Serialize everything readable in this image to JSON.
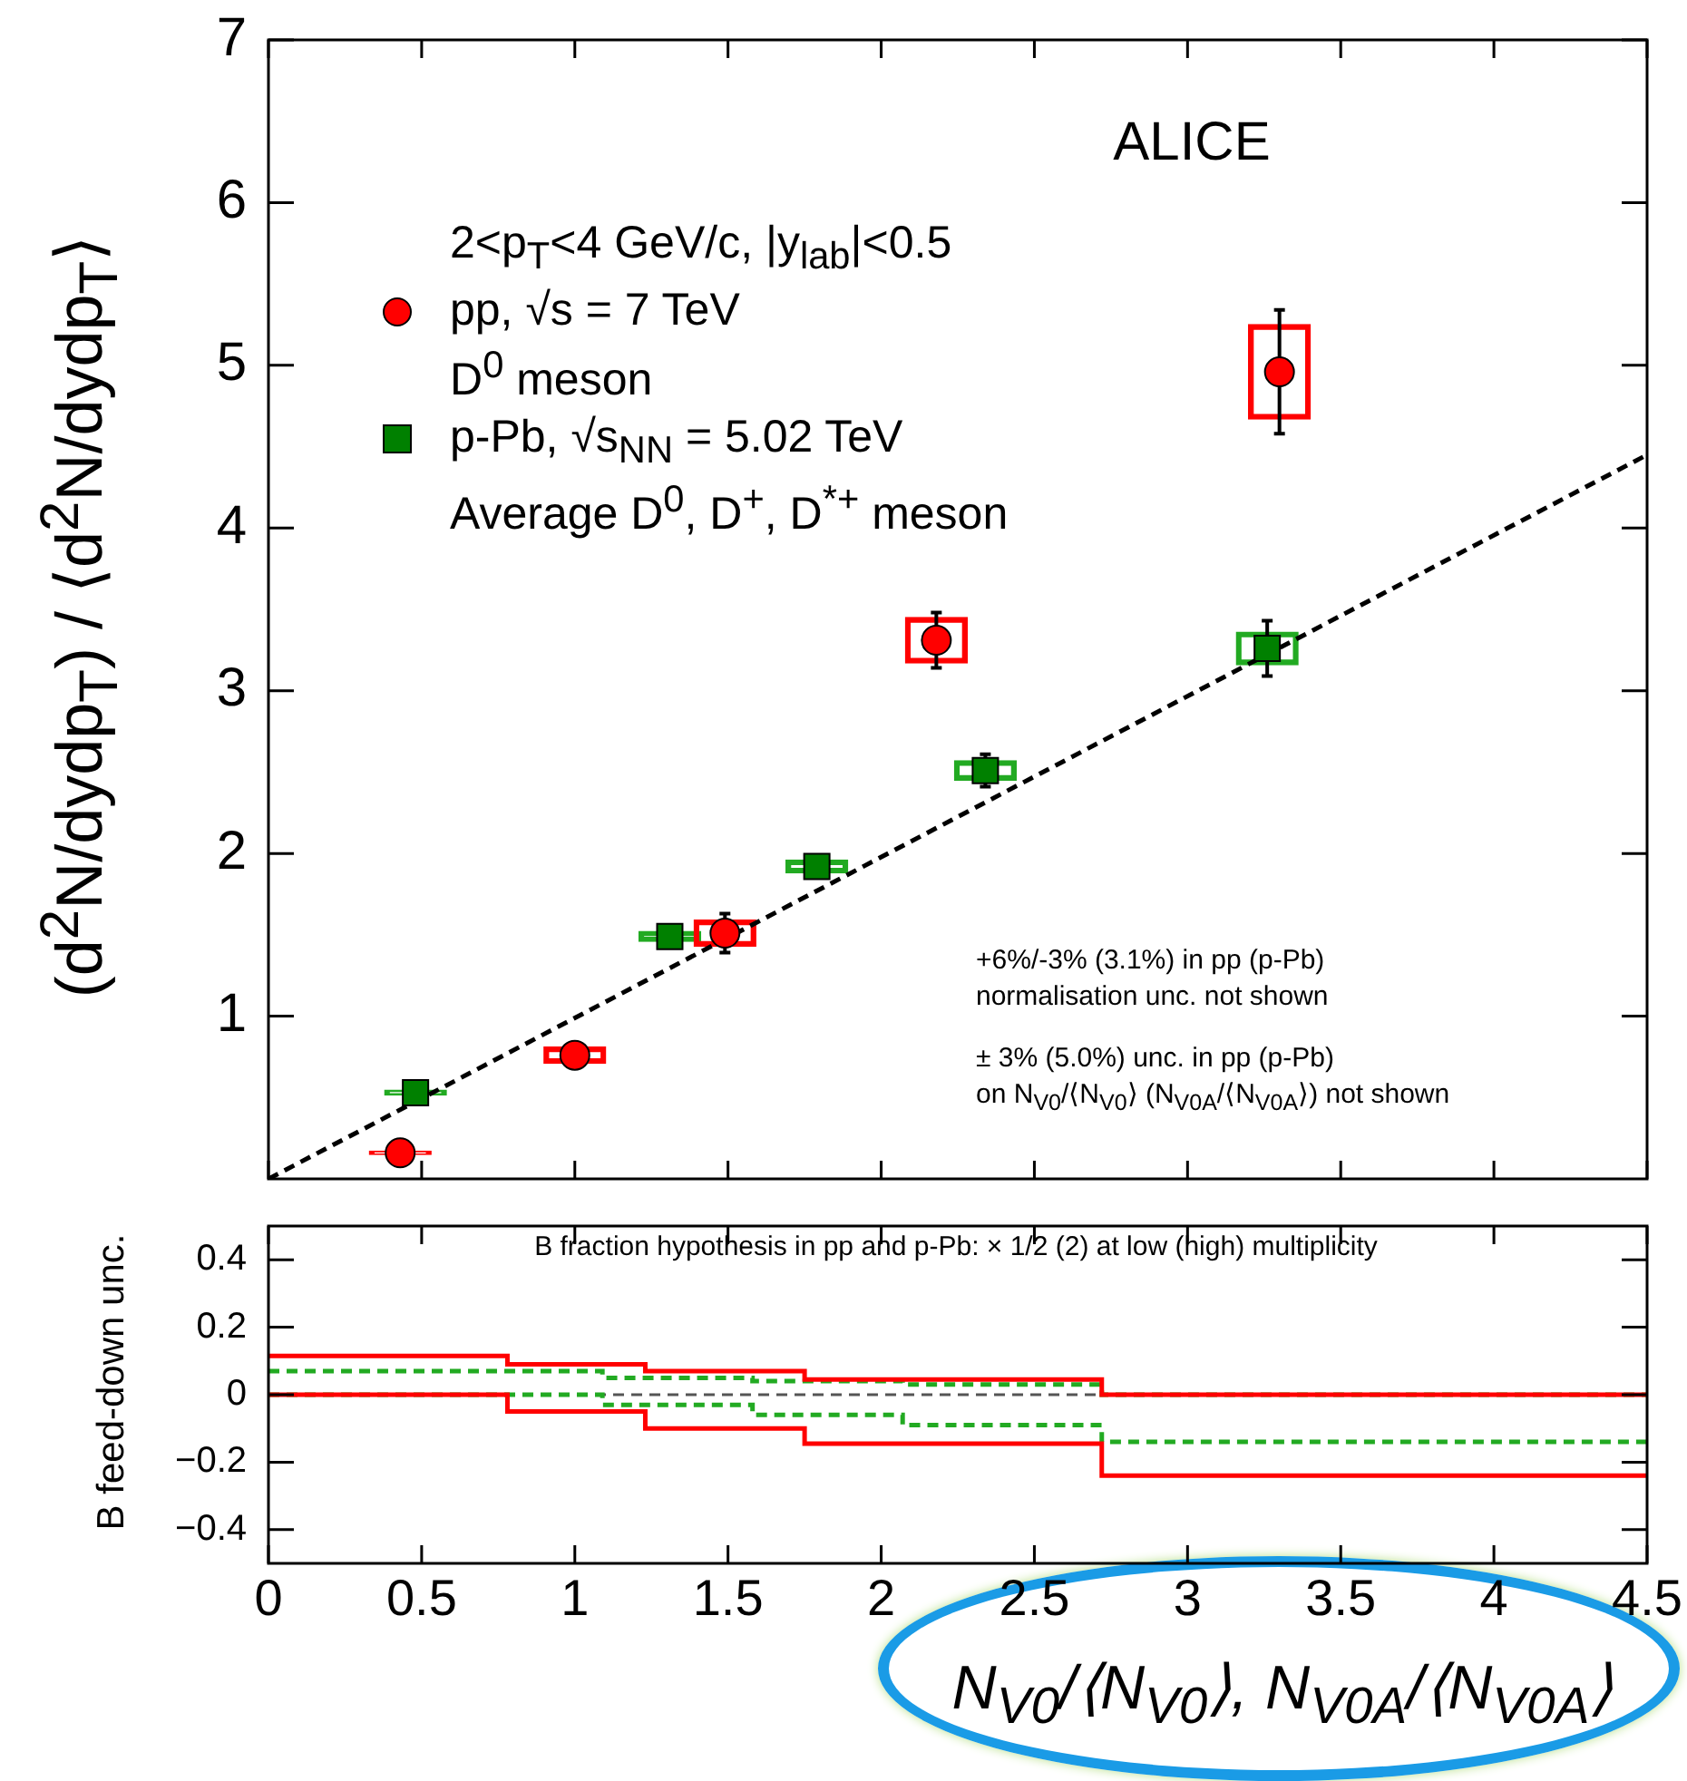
{
  "chart_data": [
    {
      "type": "scatter",
      "title": "ALICE",
      "ylabel": "(d$^{2}$N/dydp$_{T}$) / ⟨d$^{2}$N/dydp$_{T}$⟩",
      "legend": "top left",
      "legend_title": "2<p$_{T}$<4 GeV/c, |y$_{lab}$|<0.5",
      "xlim": [
        0,
        4.5
      ],
      "xticks": [
        0,
        0.5,
        1,
        1.5,
        2,
        2.5,
        3,
        3.5,
        4,
        4.5
      ],
      "ylim": [
        0,
        7
      ],
      "yticks": [
        1,
        2,
        3,
        4,
        5,
        6,
        7
      ],
      "tick_labels": "y",
      "series": [
        {
          "type": "bar",
          "color": "#ff0000",
          "x": [
            0.43,
            1.0,
            1.49,
            2.18,
            3.3
          ],
          "base": [
            0.15,
            0.71,
            1.43,
            3.17,
            4.67
          ],
          "values": [
            0.02,
            0.1,
            0.16,
            0.28,
            0.58
          ]
        },
        {
          "type": "bar",
          "color": "#22aa22",
          "x": [
            0.48,
            1.31,
            1.79,
            2.34,
            3.26
          ],
          "base": [
            0.515,
            1.46,
            1.88,
            2.45,
            3.16
          ],
          "values": [
            0.03,
            0.06,
            0.08,
            0.12,
            0.2
          ]
        },
        {
          "name": "pp, √s = 7 TeV\nD$^{0}$ meson",
          "color": "#ff0000",
          "marker": "circle",
          "x": [
            0.43,
            1.0,
            1.49,
            2.18,
            3.3
          ],
          "values": [
            0.16,
            0.76,
            1.51,
            3.31,
            4.96
          ],
          "errors": [
            null,
            0.07,
            0.12,
            0.17,
            0.38
          ]
        },
        {
          "name": "p-Pb, √s$_{NN}$ = 5.02 TeV\nAverage D$^{0}$, D$^{+}$, D$^{*+}$ meson",
          "color": "#008000",
          "marker": "square",
          "x": [
            0.48,
            1.31,
            1.79,
            2.34,
            3.26
          ],
          "values": [
            0.53,
            1.49,
            1.92,
            2.51,
            3.26
          ],
          "errors": [
            null,
            null,
            0.07,
            0.1,
            0.17
          ]
        },
        {
          "type": "line",
          "color": "#000000",
          "marker": "none",
          "line_style": "dashed",
          "x": [
            0,
            4.5
          ],
          "values": [
            0,
            4.45
          ]
        }
      ],
      "annotations": [
        "+6%/-3% (3.1%) in pp (p-Pb)\nnormalisation unc. not shown",
        "± 3% (5.0%) unc. in pp (p-Pb)\non N$_{V0}$/⟨N$_{V0}$⟩ (N$_{V0A}$/⟨N$_{V0A}$⟩) not shown"
      ]
    },
    {
      "type": "step",
      "xlabel": "N$_{V0}$/⟨N$_{V0}$⟩, N$_{V0A}$/⟨N$_{V0A}$⟩",
      "ylabel": "B feed-down unc.",
      "xlim": [
        0,
        4.5
      ],
      "xticks": [
        0,
        0.5,
        1,
        1.5,
        2,
        2.5,
        3,
        3.5,
        4,
        4.5
      ],
      "ylim": [
        -0.5,
        0.5
      ],
      "yticks": [
        -0.4,
        -0.2,
        0,
        0.2,
        0.4
      ],
      "series": [
        {
          "color": "#ff0000",
          "line_style": "solid",
          "x": [
            0,
            0.78,
            1.23,
            1.75,
            2.72,
            4.5
          ],
          "values": [
            0.115,
            0.09,
            0.07,
            0.045,
            0,
            0
          ]
        },
        {
          "color": "#ff0000",
          "line_style": "solid",
          "x": [
            0,
            0.78,
            1.23,
            1.75,
            2.72,
            4.5
          ],
          "values": [
            0,
            -0.05,
            -0.1,
            -0.145,
            -0.24,
            -0.24
          ]
        },
        {
          "color": "#22aa22",
          "line_style": "dashed",
          "x": [
            0,
            1.09,
            1.58,
            2.07,
            2.72,
            4.5
          ],
          "values": [
            0.07,
            0.05,
            0.04,
            0.03,
            0,
            0
          ]
        },
        {
          "color": "#22aa22",
          "line_style": "dashed",
          "x": [
            0,
            1.09,
            1.58,
            2.07,
            2.72,
            4.5
          ],
          "values": [
            0,
            -0.03,
            -0.06,
            -0.09,
            -0.14,
            -0.14
          ]
        }
      ],
      "ref_lines": [
        {
          "axis": "y",
          "value": 0,
          "color": "#555555",
          "line_style": "dashed"
        }
      ],
      "annotations": [
        "B fraction hypothesis in pp and p-Pb: × 1/2 (2) at low (high) multiplicity"
      ]
    }
  ]
}
